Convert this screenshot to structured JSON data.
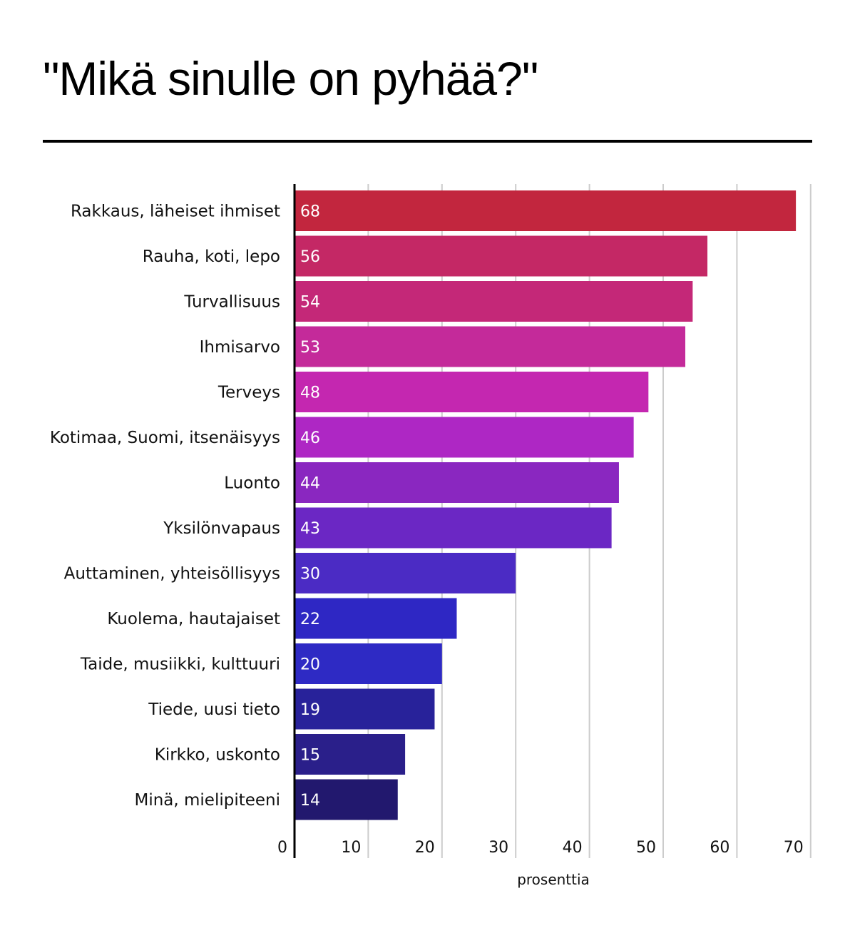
{
  "title": "\"Mikä sinulle on pyhää?\"",
  "chart_data": {
    "type": "bar",
    "orientation": "horizontal",
    "categories": [
      "Rakkaus, läheiset ihmiset",
      "Rauha, koti, lepo",
      "Turvallisuus",
      "Ihmisarvo",
      "Terveys",
      "Kotimaa, Suomi, itsenäisyys",
      "Luonto",
      "Yksilönvapaus",
      "Auttaminen, yhteisöllisyys",
      "Kuolema, hautajaiset",
      "Taide, musiikki, kulttuuri",
      "Tiede, uusi tieto",
      "Kirkko, uskonto",
      "Minä, mielipiteeni"
    ],
    "values": [
      68,
      56,
      54,
      53,
      48,
      46,
      44,
      43,
      30,
      22,
      20,
      19,
      15,
      14
    ],
    "colors": [
      "#c2263e",
      "#c42865",
      "#c42878",
      "#c42a9a",
      "#c427b0",
      "#ae27c4",
      "#8a27c0",
      "#6b27c4",
      "#4b2bc4",
      "#2e27c4",
      "#2e2ac4",
      "#28229a",
      "#2a1f8a",
      "#22186e"
    ],
    "xlabel": "prosenttia",
    "xlim": [
      0,
      70
    ],
    "xticks": [
      0,
      10,
      20,
      30,
      40,
      50,
      60,
      70
    ],
    "data_labels": true,
    "grid": "vertical"
  }
}
